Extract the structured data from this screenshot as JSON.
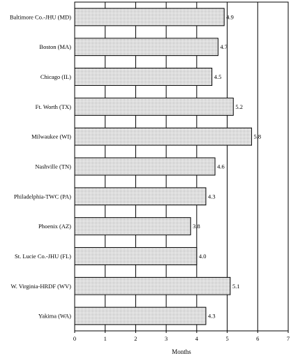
{
  "chart_data": {
    "type": "bar",
    "orientation": "horizontal",
    "title": "",
    "xlabel": "Months",
    "ylabel": "",
    "categories": [
      "Baltimore Co.-JHU (MD)",
      "Boston (MA)",
      "Chicago (IL)",
      "Ft. Worth (TX)",
      "Milwaukee (WI)",
      "Nashville (TN)",
      "Philadelphia-TWC (PA)",
      "Phoenix (AZ)",
      "St. Lucie Co.-JHU (FL)",
      "W. Virginia-HRDF (WV)",
      "Yakima (WA)"
    ],
    "values": [
      4.9,
      4.7,
      4.5,
      5.2,
      5.8,
      4.6,
      4.3,
      3.8,
      4.0,
      5.1,
      4.3
    ],
    "value_labels": [
      "4.9",
      "4.7",
      "4.5",
      "5.2",
      "5.8",
      "4.6",
      "4.3",
      "3.8",
      "4.0",
      "5.1",
      "4.3"
    ],
    "xlim": [
      0,
      7
    ],
    "xticks": [
      0,
      1,
      2,
      3,
      4,
      5,
      6,
      7
    ],
    "grid": "vertical",
    "legend": "none",
    "bar_fill": "#f2f2f2",
    "bar_pattern": "dotted",
    "bar_stroke": "#000000"
  }
}
